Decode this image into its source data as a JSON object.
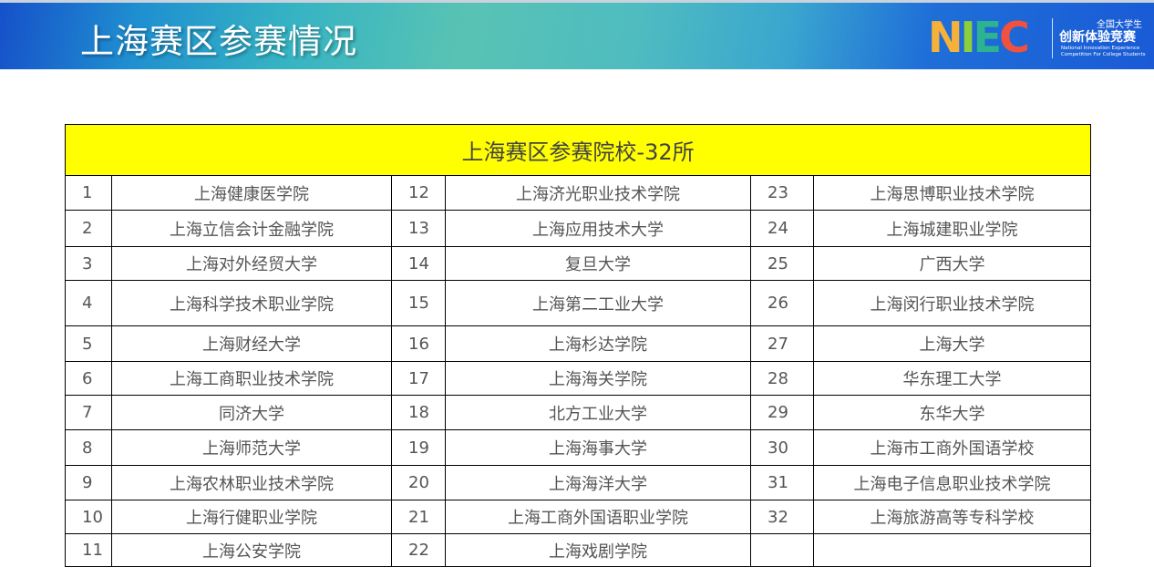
{
  "header": {
    "title": "上海赛区参赛情况",
    "logo": {
      "letters": "NIEC",
      "cn_small": "全国大学生",
      "cn_main": "创新体验竞赛",
      "en_line1": "National Innovation Experience",
      "en_line2": "Competition For College Students"
    }
  },
  "table": {
    "title": "上海赛区参赛院校-32所",
    "schools": [
      {
        "no": "1",
        "name": "上海健康医学院"
      },
      {
        "no": "2",
        "name": "上海立信会计金融学院"
      },
      {
        "no": "3",
        "name": "上海对外经贸大学"
      },
      {
        "no": "4",
        "name": "上海科学技术职业学院"
      },
      {
        "no": "5",
        "name": "上海财经大学"
      },
      {
        "no": "6",
        "name": "上海工商职业技术学院"
      },
      {
        "no": "7",
        "name": "同济大学"
      },
      {
        "no": "8",
        "name": "上海师范大学"
      },
      {
        "no": "9",
        "name": "上海农林职业技术学院"
      },
      {
        "no": "10",
        "name": "上海行健职业学院"
      },
      {
        "no": "11",
        "name": "上海公安学院"
      },
      {
        "no": "12",
        "name": "上海济光职业技术学院"
      },
      {
        "no": "13",
        "name": "上海应用技术大学"
      },
      {
        "no": "14",
        "name": "复旦大学"
      },
      {
        "no": "15",
        "name": "上海第二工业大学"
      },
      {
        "no": "16",
        "name": "上海杉达学院"
      },
      {
        "no": "17",
        "name": "上海海关学院"
      },
      {
        "no": "18",
        "name": "北方工业大学"
      },
      {
        "no": "19",
        "name": "上海海事大学"
      },
      {
        "no": "20",
        "name": "上海海洋大学"
      },
      {
        "no": "21",
        "name": "上海工商外国语职业学院"
      },
      {
        "no": "22",
        "name": "上海戏剧学院"
      },
      {
        "no": "23",
        "name": "上海思博职业技术学院"
      },
      {
        "no": "24",
        "name": "上海城建职业学院"
      },
      {
        "no": "25",
        "name": "广西大学"
      },
      {
        "no": "26",
        "name": "上海闵行职业技术学院"
      },
      {
        "no": "27",
        "name": "上海大学"
      },
      {
        "no": "28",
        "name": "华东理工大学"
      },
      {
        "no": "29",
        "name": "东华大学"
      },
      {
        "no": "30",
        "name": "上海市工商外国语学校"
      },
      {
        "no": "31",
        "name": "上海电子信息职业技术学院"
      },
      {
        "no": "32",
        "name": "上海旅游高等专科学校"
      }
    ]
  },
  "colors": {
    "header_fill": "#ffff00",
    "banner_blue": "#1650c9",
    "banner_teal": "#58c3b4"
  }
}
